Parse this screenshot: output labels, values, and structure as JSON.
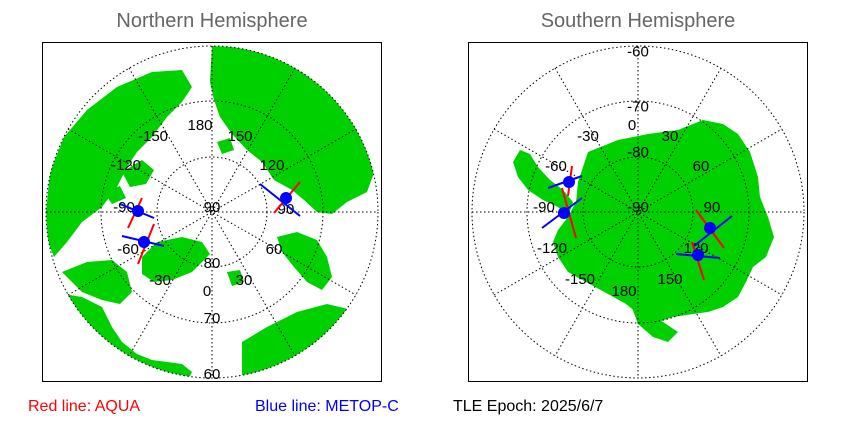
{
  "north": {
    "title": "Northern Hemisphere",
    "lon_labels": [
      "180",
      "150",
      "-150",
      "120",
      "-120",
      "90",
      "-90",
      "60",
      "-60",
      "30",
      "-30",
      "0"
    ],
    "lat_labels": [
      "80",
      "70",
      "60"
    ]
  },
  "south": {
    "title": "Southern Hemisphere",
    "lon_labels": [
      "0",
      "30",
      "-30",
      "60",
      "-60",
      "90",
      "-90",
      "120",
      "-120",
      "150",
      "-150",
      "180"
    ],
    "lat_labels": [
      "-60",
      "-70",
      "-80"
    ]
  },
  "legend": {
    "red_label": "Red line: AQUA",
    "blue_label": "Blue line: METOP-C",
    "tle_epoch": "TLE Epoch: 2025/6/7"
  },
  "colors": {
    "land": "#00d000",
    "aqua": "#ff0000",
    "metop": "#0000ff",
    "title": "#666666"
  }
}
